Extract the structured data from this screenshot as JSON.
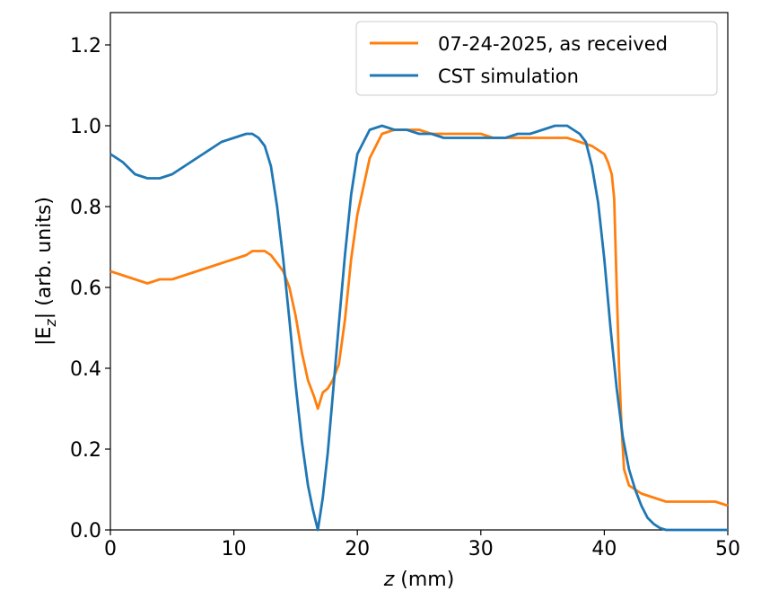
{
  "chart_data": {
    "type": "line",
    "xlabel_var": "z",
    "xlabel_unit": " (mm)",
    "ylabel_pre": "|E",
    "ylabel_sub": "z",
    "ylabel_post": "| (arb. units)",
    "xlim": [
      0,
      50
    ],
    "ylim": [
      0,
      1.28
    ],
    "xticks": [
      "0",
      "10",
      "20",
      "30",
      "40",
      "50"
    ],
    "yticks": [
      "0.0",
      "0.2",
      "0.4",
      "0.6",
      "0.8",
      "1.0",
      "1.2"
    ],
    "grid": false,
    "legend_position": "top-right",
    "series": [
      {
        "name": "07-24-2025, as received",
        "color": "#ff7f0e",
        "x": [
          0,
          1,
          2,
          3,
          4,
          5,
          6,
          7,
          8,
          9,
          10,
          11,
          11.5,
          12,
          12.5,
          13,
          13.5,
          14,
          14.5,
          15,
          15.5,
          16,
          16.5,
          16.8,
          17.2,
          17.6,
          18,
          18.5,
          19,
          19.5,
          20,
          21,
          22,
          23,
          24,
          25,
          26,
          27,
          28,
          29,
          30,
          31,
          32,
          33,
          34,
          35,
          36,
          37,
          38,
          39,
          39.5,
          40,
          40.3,
          40.6,
          40.8,
          41,
          41.2,
          41.4,
          41.6,
          42,
          42.5,
          43,
          44,
          45,
          46,
          47,
          48,
          49,
          50
        ],
        "y": [
          0.64,
          0.63,
          0.62,
          0.61,
          0.62,
          0.62,
          0.63,
          0.64,
          0.65,
          0.66,
          0.67,
          0.68,
          0.69,
          0.69,
          0.69,
          0.68,
          0.66,
          0.64,
          0.6,
          0.53,
          0.44,
          0.37,
          0.33,
          0.3,
          0.34,
          0.35,
          0.37,
          0.41,
          0.52,
          0.67,
          0.78,
          0.92,
          0.98,
          0.99,
          0.99,
          0.99,
          0.98,
          0.98,
          0.98,
          0.98,
          0.98,
          0.97,
          0.97,
          0.97,
          0.97,
          0.97,
          0.97,
          0.97,
          0.96,
          0.95,
          0.94,
          0.93,
          0.91,
          0.88,
          0.82,
          0.6,
          0.4,
          0.25,
          0.15,
          0.11,
          0.1,
          0.09,
          0.08,
          0.07,
          0.07,
          0.07,
          0.07,
          0.07,
          0.06
        ]
      },
      {
        "name": "CST simulation",
        "color": "#1f77b4",
        "x": [
          0,
          1,
          2,
          3,
          4,
          5,
          6,
          7,
          8,
          9,
          10,
          11,
          11.5,
          12,
          12.5,
          13,
          13.5,
          14,
          14.5,
          15,
          15.5,
          16,
          16.4,
          16.8,
          17.2,
          17.6,
          18,
          18.5,
          19,
          19.5,
          20,
          21,
          22,
          23,
          24,
          25,
          26,
          27,
          28,
          29,
          30,
          31,
          32,
          33,
          34,
          35,
          36,
          37,
          37.5,
          38,
          38.5,
          39,
          39.5,
          40,
          40.5,
          41,
          41.5,
          42,
          42.5,
          43,
          43.5,
          44,
          44.5,
          45,
          46,
          47,
          48,
          49,
          50
        ],
        "y": [
          0.93,
          0.91,
          0.88,
          0.87,
          0.87,
          0.88,
          0.9,
          0.92,
          0.94,
          0.96,
          0.97,
          0.98,
          0.98,
          0.97,
          0.95,
          0.9,
          0.8,
          0.67,
          0.52,
          0.36,
          0.22,
          0.11,
          0.05,
          0.0,
          0.08,
          0.19,
          0.33,
          0.51,
          0.68,
          0.83,
          0.93,
          0.99,
          1.0,
          0.99,
          0.99,
          0.98,
          0.98,
          0.97,
          0.97,
          0.97,
          0.97,
          0.97,
          0.97,
          0.98,
          0.98,
          0.99,
          1.0,
          1.0,
          0.99,
          0.98,
          0.96,
          0.9,
          0.81,
          0.67,
          0.5,
          0.35,
          0.23,
          0.15,
          0.1,
          0.06,
          0.03,
          0.015,
          0.005,
          0.0,
          0.0,
          0.0,
          0.0,
          0.0,
          0.0
        ]
      }
    ]
  }
}
